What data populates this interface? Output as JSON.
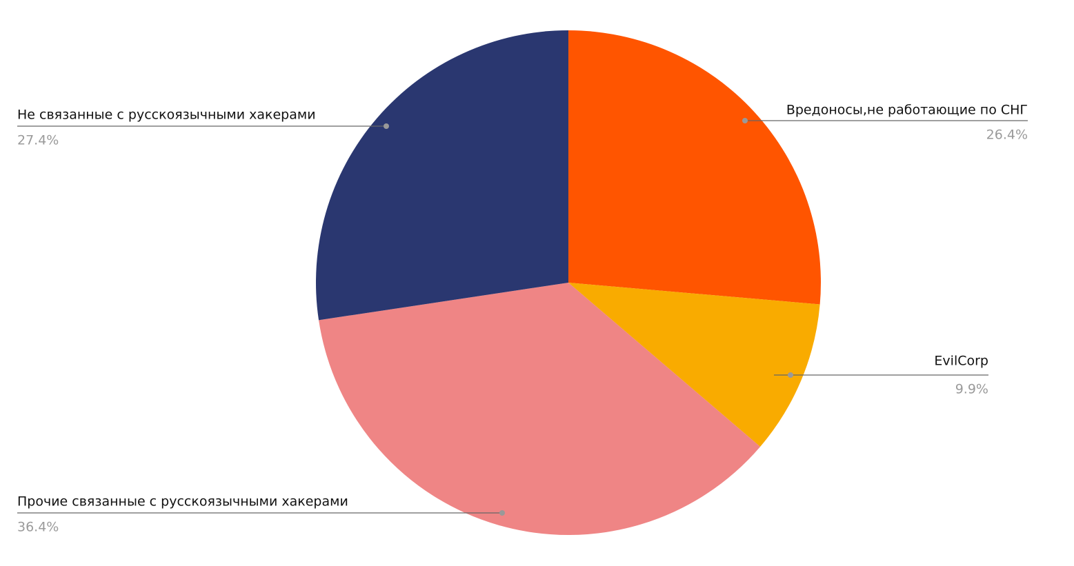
{
  "chart_data": {
    "type": "pie",
    "categories": [
      "Вредоносы,не работающие по СНГ",
      "EvilCorp",
      "Прочие связанные с русскоязычными хакерами",
      "Не связанные с русскоязычными хакерами"
    ],
    "values": [
      26.4,
      9.9,
      36.4,
      27.4
    ],
    "value_labels": [
      "26.4%",
      "9.9%",
      "36.4%",
      "27.4%"
    ],
    "colors": [
      "#ff5500",
      "#f9ab00",
      "#ef8585",
      "#2a3770"
    ]
  }
}
